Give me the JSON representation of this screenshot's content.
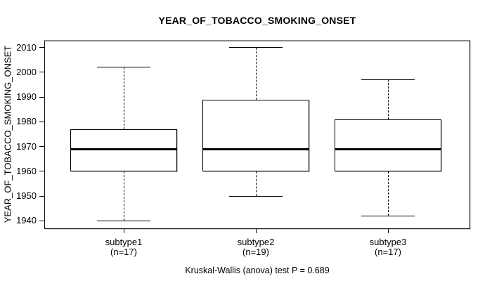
{
  "chart_data": {
    "type": "boxplot",
    "title": "YEAR_OF_TOBACCO_SMOKING_ONSET",
    "ylabel": "YEAR_OF_TOBACCO_SMOKING_ONSET",
    "caption": "Kruskal-Wallis (anova) test P = 0.689",
    "axis": {
      "ylim": [
        1937,
        2013
      ],
      "yticks": [
        1940,
        1950,
        1960,
        1970,
        1980,
        1990,
        2000,
        2010
      ],
      "grid": false,
      "legend": "none"
    },
    "groups": [
      {
        "label": "subtype1",
        "n_label": "(n=17)",
        "n": 17,
        "stats": {
          "min": 1940,
          "q1": 1960,
          "median": 1969,
          "q3": 1977,
          "max": 2002
        }
      },
      {
        "label": "subtype2",
        "n_label": "(n=19)",
        "n": 19,
        "stats": {
          "min": 1950,
          "q1": 1960,
          "median": 1969,
          "q3": 1989,
          "max": 2010
        }
      },
      {
        "label": "subtype3",
        "n_label": "(n=17)",
        "n": 17,
        "stats": {
          "min": 1942,
          "q1": 1960,
          "median": 1969,
          "q3": 1981,
          "max": 1997
        }
      }
    ],
    "colors": {
      "line": "#000000",
      "box_fill": "#ffffff",
      "background": "#ffffff"
    }
  }
}
